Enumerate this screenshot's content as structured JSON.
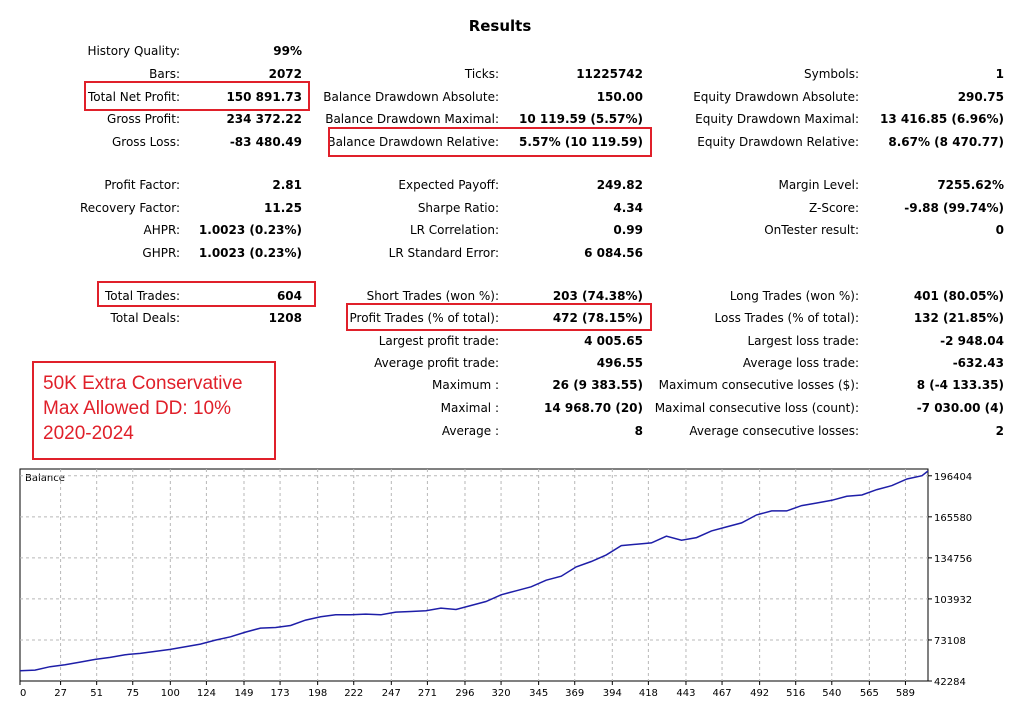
{
  "title": "Results",
  "stats": {
    "history_quality": {
      "label": "History Quality:",
      "value": "99%"
    },
    "bars": {
      "label": "Bars:",
      "value": "2072"
    },
    "ticks": {
      "label": "Ticks:",
      "value": "11225742"
    },
    "symbols": {
      "label": "Symbols:",
      "value": "1"
    },
    "total_net_profit": {
      "label": "Total Net Profit:",
      "value": "150 891.73"
    },
    "balance_dd_absolute": {
      "label": "Balance Drawdown Absolute:",
      "value": "150.00"
    },
    "equity_dd_absolute": {
      "label": "Equity Drawdown Absolute:",
      "value": "290.75"
    },
    "gross_profit": {
      "label": "Gross Profit:",
      "value": "234 372.22"
    },
    "balance_dd_maximal": {
      "label": "Balance Drawdown Maximal:",
      "value": "10 119.59 (5.57%)"
    },
    "equity_dd_maximal": {
      "label": "Equity Drawdown Maximal:",
      "value": "13 416.85 (6.96%)"
    },
    "gross_loss": {
      "label": "Gross Loss:",
      "value": "-83 480.49"
    },
    "balance_dd_relative": {
      "label": "Balance Drawdown Relative:",
      "value": "5.57% (10 119.59)"
    },
    "equity_dd_relative": {
      "label": "Equity Drawdown Relative:",
      "value": "8.67% (8 470.77)"
    },
    "profit_factor": {
      "label": "Profit Factor:",
      "value": "2.81"
    },
    "expected_payoff": {
      "label": "Expected Payoff:",
      "value": "249.82"
    },
    "margin_level": {
      "label": "Margin Level:",
      "value": "7255.62%"
    },
    "recovery_factor": {
      "label": "Recovery Factor:",
      "value": "11.25"
    },
    "sharpe_ratio": {
      "label": "Sharpe Ratio:",
      "value": "4.34"
    },
    "z_score": {
      "label": "Z-Score:",
      "value": "-9.88 (99.74%)"
    },
    "ahpr": {
      "label": "AHPR:",
      "value": "1.0023 (0.23%)"
    },
    "lr_correlation": {
      "label": "LR Correlation:",
      "value": "0.99"
    },
    "ontester_result": {
      "label": "OnTester result:",
      "value": "0"
    },
    "ghpr": {
      "label": "GHPR:",
      "value": "1.0023 (0.23%)"
    },
    "lr_standard_error": {
      "label": "LR Standard Error:",
      "value": "6 084.56"
    },
    "total_trades": {
      "label": "Total Trades:",
      "value": "604"
    },
    "short_trades": {
      "label": "Short Trades (won %):",
      "value": "203 (74.38%)"
    },
    "long_trades": {
      "label": "Long Trades (won %):",
      "value": "401 (80.05%)"
    },
    "total_deals": {
      "label": "Total Deals:",
      "value": "1208"
    },
    "profit_trades": {
      "label": "Profit Trades (% of total):",
      "value": "472 (78.15%)"
    },
    "loss_trades": {
      "label": "Loss Trades (% of total):",
      "value": "132 (21.85%)"
    },
    "largest_profit_trade": {
      "label": "Largest profit trade:",
      "value": "4 005.65"
    },
    "largest_loss_trade": {
      "label": "Largest loss trade:",
      "value": "-2 948.04"
    },
    "average_profit_trade": {
      "label": "Average profit trade:",
      "value": "496.55"
    },
    "average_loss_trade": {
      "label": "Average loss trade:",
      "value": "-632.43"
    },
    "maximum_consecutive_wins": {
      "label": "Maximum :",
      "value": "26 (9 383.55)"
    },
    "maximum_consecutive_losses": {
      "label": "Maximum consecutive losses ($):",
      "value": "8 (-4 133.35)"
    },
    "maximal_consecutive_profit": {
      "label": "Maximal :",
      "value": "14 968.70 (20)"
    },
    "maximal_consecutive_loss": {
      "label": "Maximal consecutive loss (count):",
      "value": "-7 030.00 (4)"
    },
    "average_consecutive_wins": {
      "label": "Average :",
      "value": "8"
    },
    "average_consecutive_losses": {
      "label": "Average consecutive losses:",
      "value": "2"
    }
  },
  "note": {
    "line1": "50K Extra Conservative",
    "line2": "Max Allowed DD: 10%",
    "line3": "2020-2024"
  },
  "colors": {
    "highlight": "#e0202a",
    "balance_line": "#1e1ea8",
    "grid": "#b8b8b8"
  },
  "chart_data": {
    "type": "line",
    "title": "Balance",
    "x_ticks": [
      0,
      27,
      51,
      75,
      100,
      124,
      149,
      173,
      198,
      222,
      247,
      271,
      296,
      320,
      345,
      369,
      394,
      418,
      443,
      467,
      492,
      516,
      540,
      565,
      589
    ],
    "y_ticks": [
      42284,
      73108,
      103932,
      134756,
      165580,
      196404
    ],
    "xlim": [
      0,
      604
    ],
    "ylim": [
      42284,
      201500
    ],
    "grid": true,
    "series": [
      {
        "x": [
          0,
          10,
          20,
          30,
          40,
          50,
          60,
          70,
          80,
          90,
          100,
          110,
          120,
          130,
          140,
          150,
          160,
          170,
          180,
          190,
          200,
          210,
          220,
          230,
          240,
          250,
          260,
          270,
          280,
          290,
          300,
          310,
          320,
          330,
          340,
          350,
          360,
          370,
          380,
          390,
          400,
          410,
          420,
          430,
          440,
          450,
          460,
          470,
          480,
          490,
          500,
          510,
          520,
          530,
          540,
          550,
          560,
          570,
          580,
          590,
          600,
          604
        ],
        "y": [
          50000,
          50500,
          53000,
          54500,
          56500,
          58500,
          60000,
          62000,
          63000,
          64500,
          66000,
          68000,
          70000,
          73000,
          75500,
          79000,
          82000,
          82500,
          84000,
          88000,
          90500,
          92000,
          92000,
          92500,
          92000,
          94000,
          94500,
          95000,
          97000,
          96000,
          99000,
          102000,
          107000,
          110000,
          113000,
          118000,
          121000,
          128000,
          132000,
          137000,
          144000,
          145000,
          146000,
          151000,
          148000,
          150000,
          155000,
          158000,
          161000,
          167000,
          170000,
          170000,
          174000,
          176000,
          178000,
          181000,
          182000,
          186000,
          189000,
          194000,
          196500,
          200000
        ]
      }
    ]
  }
}
